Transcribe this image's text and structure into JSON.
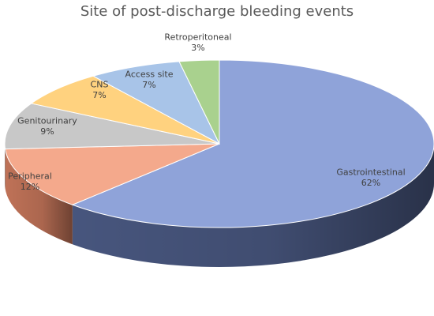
{
  "chart_data": {
    "type": "pie",
    "title": "Site of post-discharge bleeding events",
    "style": "3d",
    "start_angle_deg": 90,
    "direction": "clockwise",
    "slices": [
      {
        "label": "Gastrointestinal",
        "percent_label": "62%",
        "value": 62,
        "color": "#8fa3d9",
        "side_color": "#4b5a84"
      },
      {
        "label": "Peripheral",
        "percent_label": "12%",
        "value": 12,
        "color": "#f4a98c",
        "side_color": "#c9785c"
      },
      {
        "label": "Genitourinary",
        "percent_label": "9%",
        "value": 9,
        "color": "#c8c8c8",
        "side_color": "#9a9a9a"
      },
      {
        "label": "CNS",
        "percent_label": "7%",
        "value": 7,
        "color": "#ffd27f",
        "side_color": "#cda250"
      },
      {
        "label": "Access site",
        "percent_label": "7%",
        "value": 7,
        "color": "#a8c4e8",
        "side_color": "#7a96bb"
      },
      {
        "label": "Retroperitoneal",
        "percent_label": "3%",
        "value": 3,
        "color": "#a9d18e",
        "side_color": "#7aa35f"
      }
    ]
  }
}
